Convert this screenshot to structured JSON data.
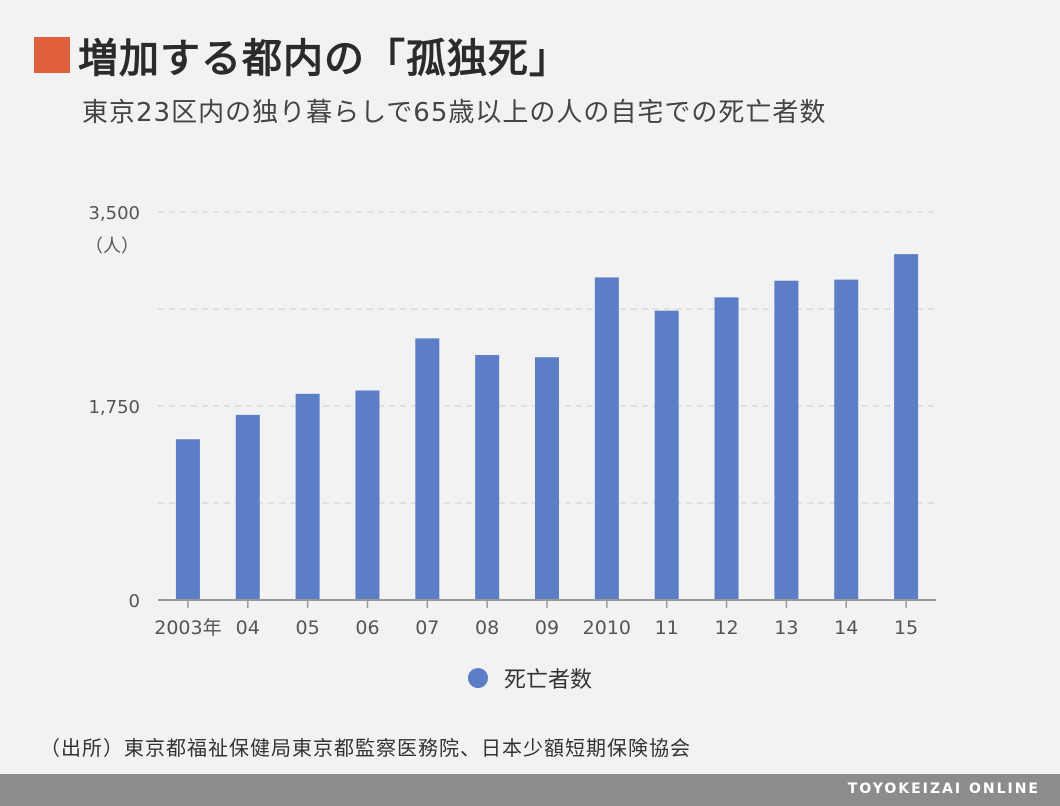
{
  "header": {
    "title": "増加する都内の「孤独死」",
    "subtitle": "東京23区内の独り暮らしで65歳以上の人の自宅での死亡者数"
  },
  "colors": {
    "accent": "#e0613c",
    "bar": "#5b7ec6",
    "grid": "#d9d9d9",
    "axis": "#999999",
    "background": "#f2f2f2",
    "footer": "#8c8c8c"
  },
  "chart_data": {
    "type": "bar",
    "categories": [
      "2003年",
      "04",
      "05",
      "06",
      "07",
      "08",
      "09",
      "2010",
      "11",
      "12",
      "13",
      "14",
      "15"
    ],
    "series": [
      {
        "name": "死亡者数",
        "values": [
          1450,
          1670,
          1860,
          1890,
          2360,
          2210,
          2190,
          2910,
          2610,
          2730,
          2880,
          2890,
          3120
        ]
      }
    ],
    "ylim": [
      0,
      3500
    ],
    "ytick_labels": [
      "0",
      "1,750",
      "3,500"
    ],
    "yunit": "（人）",
    "grid": true
  },
  "source": "（出所）東京都福祉保健局東京都監察医務院、日本少額短期保険協会",
  "footer": {
    "brand": "TOYOKEIZAI ONLINE"
  }
}
